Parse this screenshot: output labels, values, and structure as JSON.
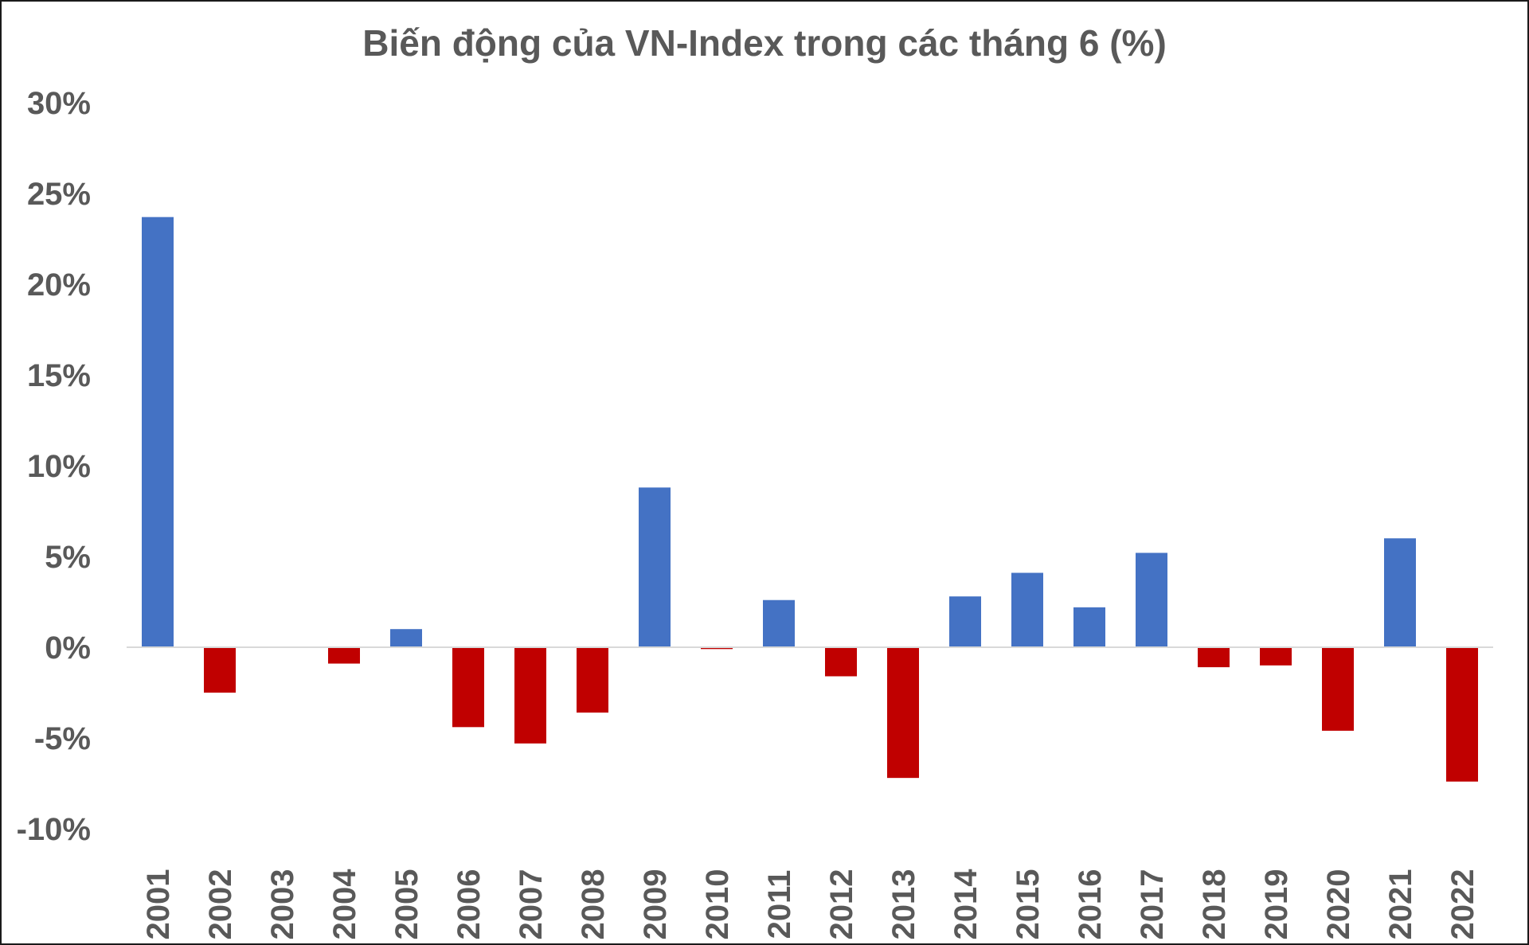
{
  "chart_data": {
    "type": "bar",
    "title": "Biến động của VN-Index trong các tháng 6 (%)",
    "xlabel": "",
    "ylabel": "",
    "ylim": [
      -10,
      30
    ],
    "ytick_values": [
      30,
      25,
      20,
      15,
      10,
      5,
      0,
      -5,
      -10
    ],
    "ytick_labels": [
      "30%",
      "25%",
      "20%",
      "15%",
      "10%",
      "5%",
      "0%",
      "-5%",
      "-10%"
    ],
    "grid": false,
    "legend": "none",
    "categories": [
      "2001",
      "2002",
      "2003",
      "2004",
      "2005",
      "2006",
      "2007",
      "2008",
      "2009",
      "2010",
      "2011",
      "2012",
      "2013",
      "2014",
      "2015",
      "2016",
      "2017",
      "2018",
      "2019",
      "2020",
      "2021",
      "2022"
    ],
    "values": [
      23.7,
      -2.5,
      0.0,
      -0.9,
      1.0,
      -4.4,
      -5.3,
      -3.6,
      8.8,
      -0.1,
      2.6,
      -1.6,
      -7.2,
      2.8,
      4.1,
      2.2,
      5.2,
      -1.1,
      -1.0,
      -4.6,
      6.0,
      -7.4
    ],
    "colors": {
      "positive": "#4472C4",
      "negative": "#C00000",
      "axis": "#D9D9D9",
      "text": "#595959"
    }
  }
}
